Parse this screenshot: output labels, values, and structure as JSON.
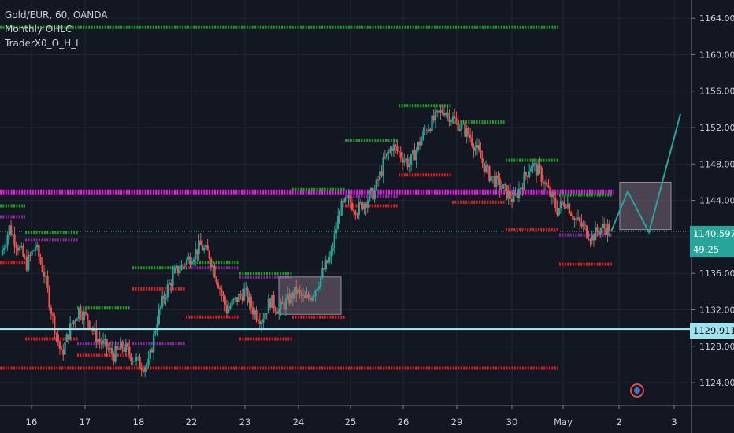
{
  "legend": {
    "symbol": "Gold/EUR, 60, OANDA",
    "indicator1": "Monthly OHLC",
    "indicator2": "TraderX0_O_H_L"
  },
  "price_axis": {
    "labels": [
      "1164.000",
      "1160.000",
      "1156.000",
      "1152.000",
      "1148.000",
      "1144.000",
      "1140.000",
      "1136.000",
      "1132.000",
      "1128.000",
      "1124.000"
    ],
    "last_price": "1140.597",
    "countdown": "49:25",
    "hline_price": "1129.911"
  },
  "time_axis": {
    "labels": [
      "16",
      "17",
      "18",
      "22",
      "23",
      "24",
      "25",
      "26",
      "29",
      "30",
      "May",
      "2",
      "3"
    ]
  },
  "colors": {
    "background": "#131722",
    "up": "#26a69a",
    "down": "#ef5350",
    "level_green": "#1b9e22",
    "level_red": "#e01e1e",
    "level_magenta": "#e91ee9",
    "level_purple": "#8a2b9c",
    "hline": "#9ee3eb",
    "projection": "#26a69a"
  },
  "chart_data": {
    "type": "candlestick",
    "instrument": "Gold/EUR",
    "timeframe": "60",
    "source": "OANDA",
    "y_range": [
      1121.5,
      1166.0
    ],
    "x_categories": [
      "16",
      "17",
      "18",
      "22",
      "23",
      "24",
      "25",
      "26",
      "29",
      "30",
      "May",
      "2",
      "3"
    ],
    "price_path": [
      1138,
      1141,
      1139,
      1137,
      1139,
      1136,
      1131,
      1127,
      1130,
      1132,
      1131,
      1129,
      1128,
      1127,
      1128,
      1127,
      1126,
      1126,
      1131,
      1134,
      1136,
      1137,
      1138,
      1139,
      1138,
      1135,
      1132,
      1133,
      1134,
      1132,
      1131,
      1133,
      1132,
      1133,
      1134,
      1133,
      1134,
      1136,
      1138,
      1143,
      1144,
      1143,
      1144,
      1145,
      1148,
      1150,
      1149,
      1148,
      1150,
      1152,
      1153,
      1154,
      1153,
      1152,
      1151,
      1149,
      1147,
      1146,
      1145,
      1144,
      1146,
      1148,
      1147,
      1145,
      1143,
      1144,
      1142,
      1141,
      1140,
      1141,
      1141
    ],
    "horizontal_lines": [
      {
        "price": 1163.0,
        "color": "green",
        "from": "16",
        "to": "30"
      },
      {
        "price": 1144.9,
        "color": "magenta",
        "from": "16",
        "to": "May"
      },
      {
        "price": 1125.6,
        "color": "red",
        "from": "16",
        "to": "30"
      },
      {
        "price": 1129.911,
        "color": "hline",
        "from": "16",
        "to": "3"
      }
    ],
    "projection": [
      1140.6,
      1145.0,
      1140.5,
      1153.5
    ],
    "boxes": [
      {
        "from": "23",
        "to": "24",
        "low": 1131.5,
        "high": 1135.6
      },
      {
        "from": "May",
        "to": "2",
        "low": 1140.8,
        "high": 1146.0
      }
    ]
  }
}
